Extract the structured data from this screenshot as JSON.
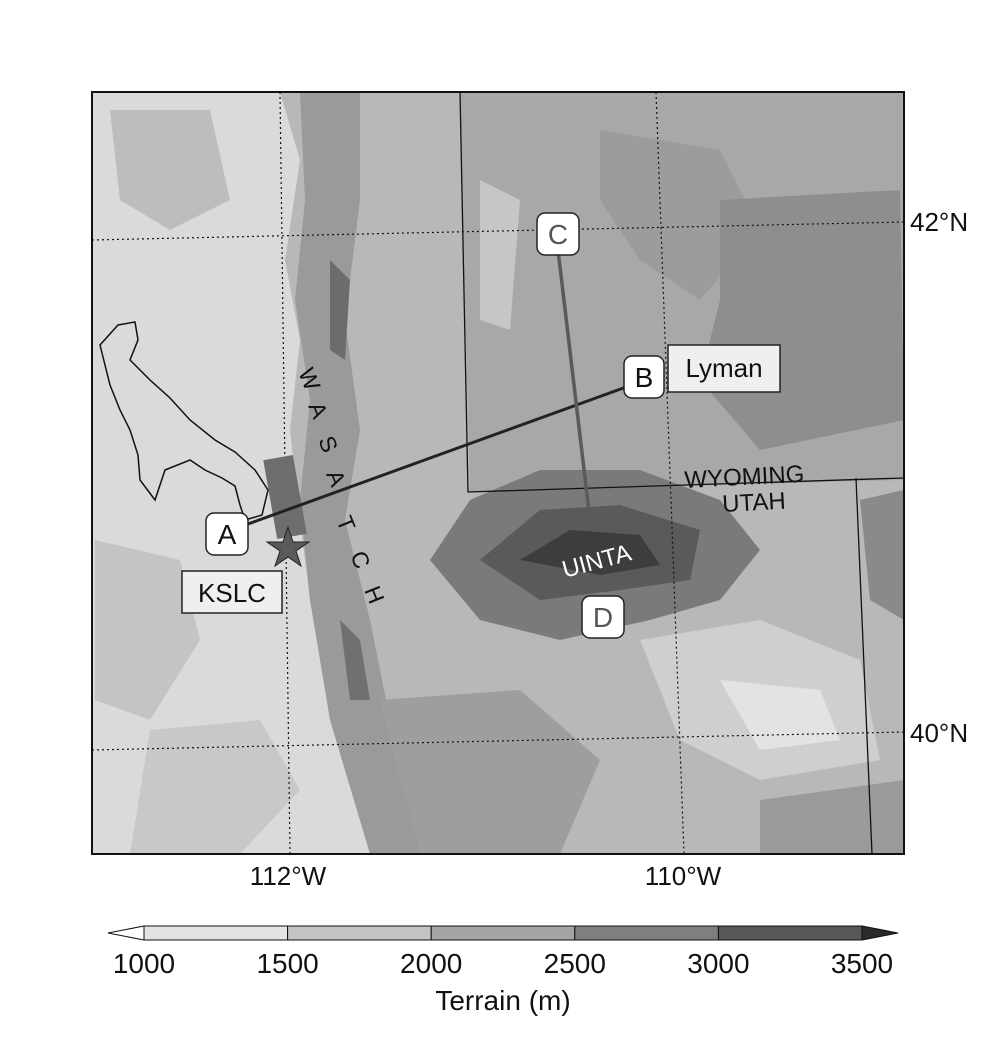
{
  "map": {
    "lat_labels": [
      "42°N",
      "40°N"
    ],
    "lon_labels": [
      "112°W",
      "110°W"
    ],
    "range_name_wasatch": [
      "W",
      "A",
      "S",
      "A",
      "T",
      "C",
      "H"
    ],
    "range_name_uinta": "UINTA",
    "state_wyoming": "WYOMING",
    "state_utah": "UTAH",
    "point_labels": {
      "a": "A",
      "b": "B",
      "c": "C",
      "d": "D"
    },
    "station_kslc": "KSLC",
    "station_lyman": "Lyman"
  },
  "colorbar": {
    "title": "Terrain (m)",
    "ticks": [
      "1000",
      "1500",
      "2000",
      "2500",
      "3000",
      "3500"
    ],
    "colors": [
      "#ffffff",
      "#e3e3e3",
      "#c4c4c4",
      "#a4a4a4",
      "#7f7f7f",
      "#575757",
      "#2a2a2a"
    ]
  },
  "colors": {
    "terrain_low": "#dcdcdc",
    "terrain_mid": "#b9b9b9",
    "terrain_high": "#8c8c8c",
    "terrain_peak": "#505050",
    "cross_section_ab": "#222222",
    "cross_section_cd": "#5a5a5a"
  },
  "icons": {
    "kslc_marker": "star-icon"
  }
}
